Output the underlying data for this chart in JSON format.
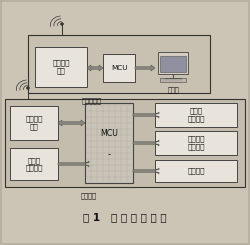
{
  "fig_bg": "#b8b0a0",
  "page_bg": "#c8c0b0",
  "box_fill": "#e8e4dc",
  "box_edge": "#444444",
  "section_fill": "#c0b8a8",
  "section_edge": "#333333",
  "mcu_fill": "#d0ccc0",
  "arrow_fill": "#888880",
  "arrow_edge": "#555550",
  "text_color": "#111111",
  "fontsize": 5.2,
  "title_fontsize": 7.5,
  "title": "图 1   系 统 原 理 框 图",
  "top_label": "控制室主机",
  "bot_label": "现场从机",
  "computer_label": "计算机"
}
